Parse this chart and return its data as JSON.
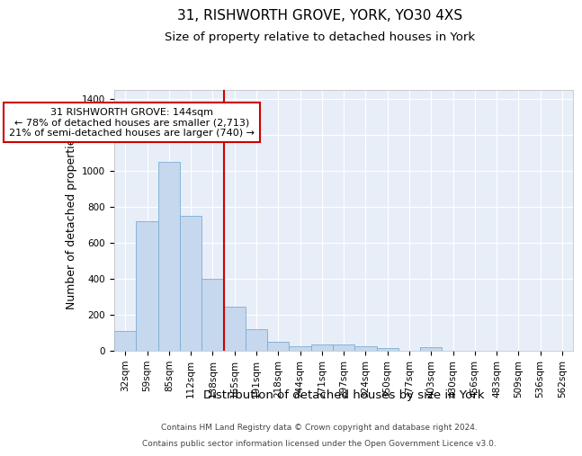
{
  "title": "31, RISHWORTH GROVE, YORK, YO30 4XS",
  "subtitle": "Size of property relative to detached houses in York",
  "xlabel": "Distribution of detached houses by size in York",
  "ylabel": "Number of detached properties",
  "bar_color": "#c5d8ed",
  "bar_edge_color": "#7aadd4",
  "bg_color": "#e8eef8",
  "grid_color": "#ffffff",
  "categories": [
    "32sqm",
    "59sqm",
    "85sqm",
    "112sqm",
    "138sqm",
    "165sqm",
    "191sqm",
    "218sqm",
    "244sqm",
    "271sqm",
    "297sqm",
    "324sqm",
    "350sqm",
    "377sqm",
    "403sqm",
    "430sqm",
    "456sqm",
    "483sqm",
    "509sqm",
    "536sqm",
    "562sqm"
  ],
  "values": [
    110,
    720,
    1050,
    750,
    400,
    245,
    120,
    50,
    25,
    33,
    33,
    23,
    13,
    0,
    18,
    0,
    0,
    0,
    0,
    0,
    0
  ],
  "vline_x": 4.5,
  "vline_color": "#cc0000",
  "annotation_line1": "31 RISHWORTH GROVE: 144sqm",
  "annotation_line2": "← 78% of detached houses are smaller (2,713)",
  "annotation_line3": "21% of semi-detached houses are larger (740) →",
  "annotation_box_color": "#cc0000",
  "ylim": [
    0,
    1450
  ],
  "yticks": [
    0,
    200,
    400,
    600,
    800,
    1000,
    1200,
    1400
  ],
  "footer_line1": "Contains HM Land Registry data © Crown copyright and database right 2024.",
  "footer_line2": "Contains public sector information licensed under the Open Government Licence v3.0.",
  "title_fontsize": 11,
  "subtitle_fontsize": 9.5,
  "ylabel_fontsize": 9,
  "xlabel_fontsize": 9.5,
  "tick_fontsize": 7.5,
  "annotation_fontsize": 8,
  "footer_fontsize": 6.5
}
